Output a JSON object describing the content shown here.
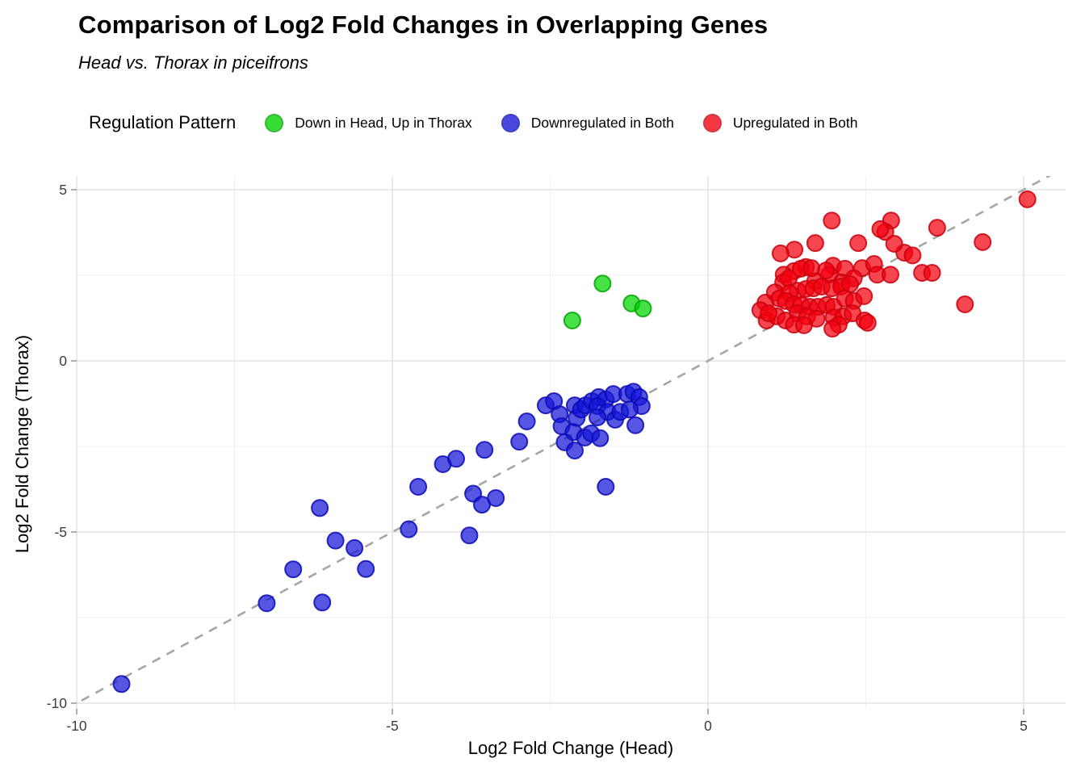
{
  "header": {
    "title": "Comparison of Log2 Fold Changes in Overlapping Genes",
    "subtitle": "Head vs. Thorax in piceifrons"
  },
  "legend": {
    "title": "Regulation Pattern",
    "items": [
      {
        "label": "Down in Head, Up in Thorax",
        "color": "#00D400",
        "border": "#00A400"
      },
      {
        "label": "Downregulated in Both",
        "color": "#1515D8",
        "border": "#0A0AB4"
      },
      {
        "label": "Upregulated in Both",
        "color": "#F2000E",
        "border": "#C9000C"
      }
    ]
  },
  "axes": {
    "xlabel": "Log2 Fold Change (Head)",
    "ylabel": "Log2 Fold Change (Thorax)",
    "x_tick_labels": [
      "-10",
      "-5",
      "0",
      "5"
    ],
    "y_tick_labels": [
      "-10",
      "-5",
      "0",
      "5"
    ]
  },
  "chart_data": {
    "type": "scatter",
    "title": "Comparison of Log2 Fold Changes in Overlapping Genes",
    "subtitle": "Head vs. Thorax in piceifrons",
    "xlabel": "Log2 Fold Change (Head)",
    "ylabel": "Log2 Fold Change (Thorax)",
    "xlim": [
      -10,
      5.67
    ],
    "ylim": [
      -10.17,
      5.4
    ],
    "x_ticks": [
      -10,
      -5,
      0,
      5
    ],
    "y_ticks": [
      -10,
      -5,
      0,
      5
    ],
    "x_minor_ticks": [
      -7.5,
      -2.5,
      2.5
    ],
    "y_minor_ticks": [
      -7.5,
      -2.5,
      2.5
    ],
    "grid": true,
    "legend_position": "top",
    "identity_line": {
      "equation": "y = x",
      "style": "dashed",
      "color": "#A6A6A6"
    },
    "series": [
      {
        "name": "Down in Head, Up in Thorax",
        "color": "#00D400",
        "stroke": "#00A400",
        "points": [
          [
            -1.67,
            2.26
          ],
          [
            -2.15,
            1.18
          ],
          [
            -1.21,
            1.68
          ],
          [
            -1.03,
            1.53
          ]
        ]
      },
      {
        "name": "Downregulated in Both",
        "color": "#1515D8",
        "stroke": "#0A0AB4",
        "points": [
          [
            -9.29,
            -9.44
          ],
          [
            -6.99,
            -7.08
          ],
          [
            -6.11,
            -7.06
          ],
          [
            -6.57,
            -6.09
          ],
          [
            -5.42,
            -6.08
          ],
          [
            -5.9,
            -5.25
          ],
          [
            -5.6,
            -5.47
          ],
          [
            -6.15,
            -4.3
          ],
          [
            -4.74,
            -4.92
          ],
          [
            -4.59,
            -3.68
          ],
          [
            -3.78,
            -5.1
          ],
          [
            -3.72,
            -3.88
          ],
          [
            -3.58,
            -4.2
          ],
          [
            -3.36,
            -4.01
          ],
          [
            -4.2,
            -3.02
          ],
          [
            -3.99,
            -2.86
          ],
          [
            -3.54,
            -2.6
          ],
          [
            -2.99,
            -2.36
          ],
          [
            -2.87,
            -1.77
          ],
          [
            -2.57,
            -1.3
          ],
          [
            -2.44,
            -1.18
          ],
          [
            -2.35,
            -1.56
          ],
          [
            -2.32,
            -1.91
          ],
          [
            -2.11,
            -1.3
          ],
          [
            -2.08,
            -1.67
          ],
          [
            -2.13,
            -2.08
          ],
          [
            -2.27,
            -2.38
          ],
          [
            -2.11,
            -2.62
          ],
          [
            -1.95,
            -2.24
          ],
          [
            -2.01,
            -1.42
          ],
          [
            -1.94,
            -1.3
          ],
          [
            -1.84,
            -1.18
          ],
          [
            -1.73,
            -1.06
          ],
          [
            -1.62,
            -1.13
          ],
          [
            -1.5,
            -0.97
          ],
          [
            -1.75,
            -1.32
          ],
          [
            -1.59,
            -1.49
          ],
          [
            -1.75,
            -1.65
          ],
          [
            -1.47,
            -1.72
          ],
          [
            -1.39,
            -1.49
          ],
          [
            -1.28,
            -0.97
          ],
          [
            -1.18,
            -0.9
          ],
          [
            -1.09,
            -1.06
          ],
          [
            -1.05,
            -1.32
          ],
          [
            -1.24,
            -1.42
          ],
          [
            -1.15,
            -1.88
          ],
          [
            -1.85,
            -2.12
          ],
          [
            -1.71,
            -2.26
          ],
          [
            -1.62,
            -3.68
          ]
        ]
      },
      {
        "name": "Upregulated in Both",
        "color": "#F2000E",
        "stroke": "#C9000C",
        "points": [
          [
            5.06,
            4.72
          ],
          [
            1.96,
            4.1
          ],
          [
            2.9,
            4.1
          ],
          [
            2.81,
            3.77
          ],
          [
            2.73,
            3.85
          ],
          [
            3.63,
            3.89
          ],
          [
            4.35,
            3.47
          ],
          [
            2.38,
            3.44
          ],
          [
            1.7,
            3.44
          ],
          [
            1.37,
            3.25
          ],
          [
            1.15,
            3.14
          ],
          [
            3.11,
            3.16
          ],
          [
            3.24,
            3.08
          ],
          [
            2.95,
            3.42
          ],
          [
            1.55,
            2.74
          ],
          [
            1.36,
            2.62
          ],
          [
            1.2,
            2.52
          ],
          [
            1.98,
            2.78
          ],
          [
            1.92,
            2.52
          ],
          [
            2.17,
            2.69
          ],
          [
            2.44,
            2.71
          ],
          [
            2.63,
            2.83
          ],
          [
            2.68,
            2.52
          ],
          [
            2.89,
            2.52
          ],
          [
            2.31,
            2.41
          ],
          [
            2.12,
            2.29
          ],
          [
            1.7,
            2.33
          ],
          [
            3.39,
            2.57
          ],
          [
            3.55,
            2.57
          ],
          [
            1.19,
            2.29
          ],
          [
            1.28,
            2.41
          ],
          [
            1.47,
            2.69
          ],
          [
            1.64,
            2.71
          ],
          [
            1.87,
            2.64
          ],
          [
            0.91,
            1.7
          ],
          [
            0.83,
            1.48
          ],
          [
            0.93,
            1.18
          ],
          [
            1.06,
            2.0
          ],
          [
            1.13,
            1.82
          ],
          [
            1.42,
            2.05
          ],
          [
            1.55,
            2.1
          ],
          [
            1.67,
            2.12
          ],
          [
            1.8,
            2.17
          ],
          [
            1.96,
            2.12
          ],
          [
            2.11,
            2.17
          ],
          [
            2.25,
            2.24
          ],
          [
            1.29,
            1.98
          ],
          [
            1.23,
            1.75
          ],
          [
            1.36,
            1.65
          ],
          [
            1.48,
            1.63
          ],
          [
            1.61,
            1.58
          ],
          [
            1.74,
            1.58
          ],
          [
            1.88,
            1.63
          ],
          [
            1.99,
            1.58
          ],
          [
            2.17,
            1.82
          ],
          [
            2.31,
            1.75
          ],
          [
            2.47,
            1.89
          ],
          [
            1.42,
            1.39
          ],
          [
            1.57,
            1.3
          ],
          [
            1.72,
            1.23
          ],
          [
            1.09,
            1.3
          ],
          [
            0.96,
            1.39
          ],
          [
            1.23,
            1.18
          ],
          [
            1.36,
            1.06
          ],
          [
            1.52,
            1.04
          ],
          [
            1.99,
            1.27
          ],
          [
            2.14,
            1.3
          ],
          [
            2.29,
            1.39
          ],
          [
            2.48,
            1.18
          ],
          [
            2.07,
            1.06
          ],
          [
            4.07,
            1.65
          ],
          [
            1.97,
            0.94
          ],
          [
            2.53,
            1.11
          ]
        ]
      }
    ]
  }
}
